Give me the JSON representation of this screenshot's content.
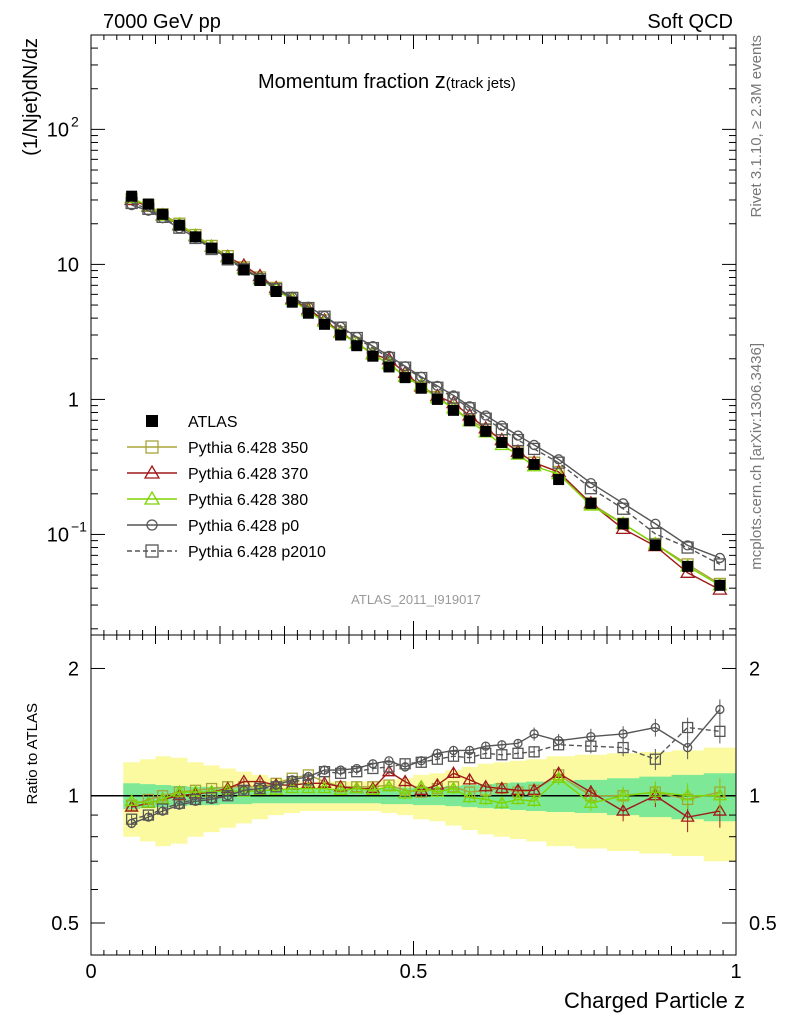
{
  "header": {
    "left": "7000 GeV pp",
    "right": "Soft QCD"
  },
  "side": {
    "top": "Rivet 3.1.10, ≥ 2.3M events",
    "bottom": "mcplots.cern.ch [arXiv:1306.3436]"
  },
  "title": {
    "main": "Momentum fraction ",
    "z": "z",
    "sub": "(track jets)"
  },
  "watermark": "ATLAS_2011_I919017",
  "chart_data": [
    {
      "type": "line",
      "scale": "log",
      "xlabel": "Charged Particle z",
      "ylabel": "(1/Njet)dN/dz",
      "xlim": [
        0,
        1
      ],
      "ylim": [
        0.018,
        500
      ],
      "yticks_major": [
        {
          "value": 0.1,
          "label": "10",
          "exp": "−1"
        },
        {
          "value": 1,
          "label": "1",
          "exp": ""
        },
        {
          "value": 10,
          "label": "10",
          "exp": ""
        },
        {
          "value": 100,
          "label": "10",
          "exp": "2"
        }
      ],
      "x": [
        0.063,
        0.089,
        0.111,
        0.137,
        0.162,
        0.187,
        0.212,
        0.237,
        0.262,
        0.287,
        0.312,
        0.337,
        0.362,
        0.387,
        0.412,
        0.437,
        0.462,
        0.487,
        0.512,
        0.537,
        0.562,
        0.587,
        0.612,
        0.637,
        0.662,
        0.687,
        0.725,
        0.775,
        0.825,
        0.875,
        0.925,
        0.975
      ],
      "legend_position": "left",
      "series": [
        {
          "name": "ATLAS",
          "color": "#000000",
          "marker": "filled-square",
          "values": [
            32,
            28,
            23.5,
            19.5,
            16,
            13.2,
            11,
            9.1,
            7.6,
            6.3,
            5.25,
            4.35,
            3.6,
            3.0,
            2.5,
            2.09,
            1.74,
            1.45,
            1.21,
            1.0,
            0.83,
            0.695,
            0.58,
            0.48,
            0.4,
            0.33,
            0.255,
            0.17,
            0.12,
            0.083,
            0.058,
            0.042
          ]
        },
        {
          "name": "Pythia 6.428 350",
          "color": "#a7a438",
          "marker": "open-square",
          "dash": "",
          "values": [
            30.5,
            27.5,
            23.5,
            20,
            16.5,
            13.7,
            11.5,
            9.5,
            8.0,
            6.7,
            5.6,
            4.65,
            3.85,
            3.15,
            2.62,
            2.17,
            1.82,
            1.5,
            1.23,
            1.04,
            0.86,
            0.71,
            0.6,
            0.5,
            0.41,
            0.34,
            0.29,
            0.17,
            0.12,
            0.085,
            0.06,
            0.043
          ]
        },
        {
          "name": "Pythia 6.428 370",
          "color": "#a01a1a",
          "marker": "open-triangle",
          "dash": "",
          "values": [
            30,
            26.8,
            23.1,
            19.5,
            16.2,
            13.5,
            11.4,
            9.8,
            8.2,
            6.7,
            5.55,
            4.65,
            3.85,
            3.15,
            2.6,
            2.17,
            1.98,
            1.57,
            1.25,
            1.06,
            0.94,
            0.76,
            0.61,
            0.5,
            0.41,
            0.34,
            0.29,
            0.17,
            0.11,
            0.082,
            0.052,
            0.039
          ]
        },
        {
          "name": "Pythia 6.428 380",
          "color": "#7fd400",
          "marker": "open-triangle",
          "dash": "",
          "values": [
            31,
            27,
            23,
            19.8,
            16.3,
            13.5,
            11.3,
            9.3,
            7.8,
            6.5,
            5.45,
            4.5,
            3.75,
            3.1,
            2.6,
            2.16,
            1.83,
            1.47,
            1.27,
            1.02,
            0.86,
            0.69,
            0.57,
            0.46,
            0.39,
            0.32,
            0.28,
            0.164,
            0.12,
            0.085,
            0.058,
            0.042
          ]
        },
        {
          "name": "Pythia 6.428 p0",
          "color": "#555555",
          "marker": "open-circle",
          "dash": "",
          "values": [
            27.5,
            25,
            22,
            18.5,
            15.8,
            13.2,
            11.1,
            9.3,
            7.9,
            6.7,
            5.75,
            4.85,
            4.15,
            3.45,
            2.9,
            2.48,
            2.1,
            1.76,
            1.47,
            1.26,
            1.07,
            0.89,
            0.76,
            0.64,
            0.54,
            0.46,
            0.36,
            0.24,
            0.17,
            0.12,
            0.083,
            0.067
          ]
        },
        {
          "name": "Pythia 6.428 p2010",
          "color": "#555555",
          "marker": "open-square",
          "dash": "5,3",
          "values": [
            28.5,
            25.8,
            22.5,
            18.7,
            15.7,
            13.0,
            10.9,
            9.2,
            7.75,
            6.55,
            5.65,
            4.75,
            4.1,
            3.4,
            2.85,
            2.4,
            2.03,
            1.72,
            1.44,
            1.22,
            1.03,
            0.86,
            0.72,
            0.6,
            0.5,
            0.43,
            0.34,
            0.22,
            0.155,
            0.101,
            0.08,
            0.06
          ]
        }
      ]
    },
    {
      "type": "line",
      "scale": "log",
      "ylabel": "Ratio to ATLAS",
      "xlim": [
        0,
        1
      ],
      "ylim": [
        0.42,
        2.4
      ],
      "xticks": [
        {
          "value": 0,
          "label": "0"
        },
        {
          "value": 0.5,
          "label": "0.5"
        },
        {
          "value": 1,
          "label": "1"
        }
      ],
      "yticks": [
        {
          "value": 0.5,
          "label": "0.5"
        },
        {
          "value": 1,
          "label": "1"
        },
        {
          "value": 2,
          "label": "2"
        }
      ],
      "band_inner_half_width": [
        0.07,
        0.065,
        0.06,
        0.055,
        0.05,
        0.05,
        0.045,
        0.045,
        0.04,
        0.04,
        0.04,
        0.04,
        0.04,
        0.04,
        0.04,
        0.04,
        0.045,
        0.045,
        0.05,
        0.05,
        0.055,
        0.06,
        0.065,
        0.07,
        0.075,
        0.08,
        0.085,
        0.09,
        0.1,
        0.11,
        0.12,
        0.13
      ],
      "band_outer_half_width": [
        0.2,
        0.22,
        0.24,
        0.23,
        0.2,
        0.18,
        0.16,
        0.14,
        0.12,
        0.1,
        0.09,
        0.08,
        0.08,
        0.08,
        0.08,
        0.08,
        0.09,
        0.1,
        0.12,
        0.13,
        0.15,
        0.17,
        0.19,
        0.2,
        0.21,
        0.22,
        0.24,
        0.25,
        0.26,
        0.27,
        0.28,
        0.3
      ],
      "band_colors": {
        "inner": "#7de996",
        "outer": "#fbfaa0"
      },
      "series": [
        {
          "name": "Pythia 6.428 350",
          "color": "#a7a438",
          "marker": "open-square",
          "dash": "",
          "values": [
            0.95,
            0.98,
            1.0,
            1.02,
            1.03,
            1.04,
            1.05,
            1.05,
            1.05,
            1.07,
            1.1,
            1.12,
            1.08,
            1.05,
            1.05,
            1.05,
            1.06,
            1.03,
            1.02,
            1.04,
            1.05,
            1.02,
            1.03,
            1.04,
            1.02,
            1.03,
            1.12,
            1.0,
            1.0,
            1.02,
            0.98,
            1.02
          ],
          "errors": [
            0.02,
            0.02,
            0.02,
            0.02,
            0.02,
            0.02,
            0.02,
            0.02,
            0.02,
            0.02,
            0.02,
            0.02,
            0.02,
            0.02,
            0.02,
            0.02,
            0.02,
            0.03,
            0.03,
            0.03,
            0.03,
            0.03,
            0.03,
            0.03,
            0.03,
            0.03,
            0.04,
            0.04,
            0.05,
            0.06,
            0.07,
            0.08
          ]
        },
        {
          "name": "Pythia 6.428 370",
          "color": "#a01a1a",
          "marker": "open-triangle",
          "dash": "",
          "values": [
            0.94,
            0.96,
            0.98,
            1.0,
            1.01,
            1.02,
            1.04,
            1.08,
            1.08,
            1.06,
            1.06,
            1.07,
            1.07,
            1.05,
            1.04,
            1.04,
            1.14,
            1.08,
            1.03,
            1.06,
            1.13,
            1.09,
            1.05,
            1.04,
            1.03,
            1.03,
            1.13,
            1.02,
            0.92,
            1.0,
            0.89,
            0.92
          ],
          "errors": [
            0.02,
            0.02,
            0.02,
            0.02,
            0.02,
            0.02,
            0.02,
            0.02,
            0.02,
            0.02,
            0.02,
            0.02,
            0.02,
            0.02,
            0.02,
            0.02,
            0.02,
            0.03,
            0.03,
            0.03,
            0.03,
            0.03,
            0.03,
            0.03,
            0.03,
            0.03,
            0.04,
            0.04,
            0.05,
            0.06,
            0.07,
            0.08
          ]
        },
        {
          "name": "Pythia 6.428 380",
          "color": "#7fd400",
          "marker": "open-triangle",
          "dash": "",
          "values": [
            0.97,
            0.96,
            0.98,
            1.02,
            1.02,
            1.02,
            1.03,
            1.02,
            1.03,
            1.03,
            1.04,
            1.04,
            1.04,
            1.03,
            1.04,
            1.03,
            1.05,
            1.01,
            1.05,
            1.02,
            1.04,
            0.99,
            0.98,
            0.96,
            0.98,
            0.97,
            1.1,
            0.96,
            1.0,
            1.02,
            1.0,
            1.0
          ],
          "errors": [
            0.02,
            0.02,
            0.02,
            0.02,
            0.02,
            0.02,
            0.02,
            0.02,
            0.02,
            0.02,
            0.02,
            0.02,
            0.02,
            0.02,
            0.02,
            0.02,
            0.02,
            0.03,
            0.03,
            0.03,
            0.03,
            0.03,
            0.03,
            0.03,
            0.03,
            0.03,
            0.04,
            0.04,
            0.05,
            0.06,
            0.07,
            0.08
          ]
        },
        {
          "name": "Pythia 6.428 p0",
          "color": "#555555",
          "marker": "open-circle",
          "dash": "",
          "values": [
            0.86,
            0.89,
            0.92,
            0.95,
            0.97,
            0.98,
            1.0,
            1.03,
            1.04,
            1.06,
            1.09,
            1.11,
            1.15,
            1.15,
            1.16,
            1.19,
            1.21,
            1.17,
            1.21,
            1.26,
            1.28,
            1.28,
            1.31,
            1.32,
            1.33,
            1.4,
            1.35,
            1.38,
            1.4,
            1.45,
            1.3,
            1.6
          ],
          "errors": [
            0.02,
            0.02,
            0.02,
            0.02,
            0.02,
            0.02,
            0.02,
            0.02,
            0.02,
            0.02,
            0.02,
            0.02,
            0.02,
            0.02,
            0.02,
            0.02,
            0.02,
            0.03,
            0.03,
            0.03,
            0.03,
            0.03,
            0.03,
            0.03,
            0.03,
            0.05,
            0.05,
            0.06,
            0.06,
            0.07,
            0.08,
            0.09
          ]
        },
        {
          "name": "Pythia 6.428 p2010",
          "color": "#555555",
          "marker": "open-square",
          "dash": "5,3",
          "values": [
            0.88,
            0.9,
            0.93,
            0.96,
            0.98,
            0.99,
            1.0,
            1.03,
            1.04,
            1.05,
            1.08,
            1.09,
            1.14,
            1.13,
            1.14,
            1.16,
            1.17,
            1.19,
            1.2,
            1.22,
            1.24,
            1.23,
            1.26,
            1.25,
            1.26,
            1.27,
            1.32,
            1.31,
            1.3,
            1.22,
            1.45,
            1.42
          ],
          "errors": [
            0.02,
            0.02,
            0.02,
            0.02,
            0.02,
            0.02,
            0.02,
            0.02,
            0.02,
            0.02,
            0.02,
            0.02,
            0.02,
            0.02,
            0.02,
            0.02,
            0.02,
            0.03,
            0.03,
            0.03,
            0.03,
            0.03,
            0.03,
            0.03,
            0.03,
            0.04,
            0.04,
            0.05,
            0.06,
            0.07,
            0.08,
            0.09
          ]
        }
      ]
    }
  ]
}
